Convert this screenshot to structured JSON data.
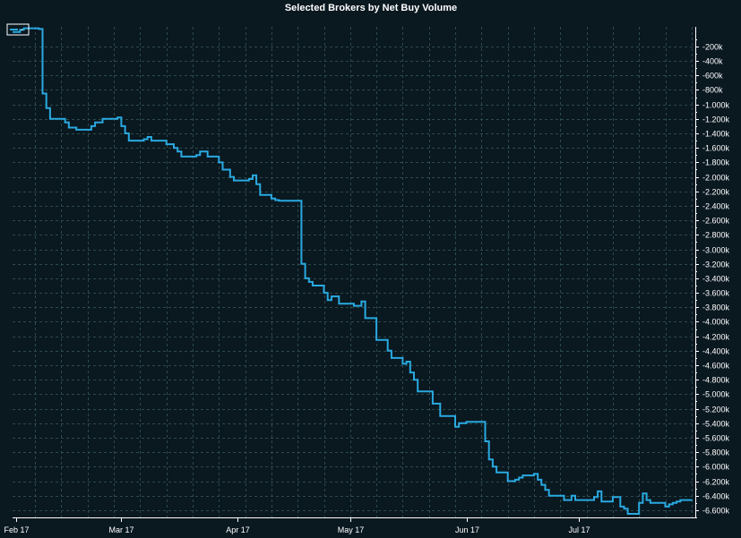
{
  "chart_data": {
    "type": "line",
    "step": true,
    "title": "Selected Brokers by Net Buy Volume",
    "xlabel": "",
    "ylabel": "",
    "x_ticks": [
      {
        "date": "2017-02-01",
        "label": "Feb 17"
      },
      {
        "date": "2017-03-01",
        "label": "Mar 17"
      },
      {
        "date": "2017-04-01",
        "label": "Apr 17"
      },
      {
        "date": "2017-05-01",
        "label": "May 17"
      },
      {
        "date": "2017-06-01",
        "label": "Jun 17"
      },
      {
        "date": "2017-07-01",
        "label": "Jul 17"
      }
    ],
    "xlim": [
      "2017-01-31",
      "2017-08-01"
    ],
    "y_ticks": [
      {
        "value": -200,
        "label": "-200k"
      },
      {
        "value": -400,
        "label": "-400k"
      },
      {
        "value": -600,
        "label": "-600k"
      },
      {
        "value": -800,
        "label": "-800k"
      },
      {
        "value": -1000,
        "label": "-1.000k"
      },
      {
        "value": -1200,
        "label": "-1.200k"
      },
      {
        "value": -1400,
        "label": "-1.400k"
      },
      {
        "value": -1600,
        "label": "-1.600k"
      },
      {
        "value": -1800,
        "label": "-1.800k"
      },
      {
        "value": -2000,
        "label": "-2.000k"
      },
      {
        "value": -2200,
        "label": "-2.200k"
      },
      {
        "value": -2400,
        "label": "-2.400k"
      },
      {
        "value": -2600,
        "label": "-2.600k"
      },
      {
        "value": -2800,
        "label": "-2.800k"
      },
      {
        "value": -3000,
        "label": "-3.000k"
      },
      {
        "value": -3200,
        "label": "-3.200k"
      },
      {
        "value": -3400,
        "label": "-3.400k"
      },
      {
        "value": -3600,
        "label": "-3.600k"
      },
      {
        "value": -3800,
        "label": "-3.800k"
      },
      {
        "value": -4000,
        "label": "-4.000k"
      },
      {
        "value": -4200,
        "label": "-4.200k"
      },
      {
        "value": -4400,
        "label": "-4.400k"
      },
      {
        "value": -4600,
        "label": "-4.600k"
      },
      {
        "value": -4800,
        "label": "-4.800k"
      },
      {
        "value": -5000,
        "label": "-5.000k"
      },
      {
        "value": -5200,
        "label": "-5.200k"
      },
      {
        "value": -5400,
        "label": "-5.400k"
      },
      {
        "value": -5600,
        "label": "-5.600k"
      },
      {
        "value": -5800,
        "label": "-5.800k"
      },
      {
        "value": -6000,
        "label": "-6.000k"
      },
      {
        "value": -6200,
        "label": "-6.200k"
      },
      {
        "value": -6400,
        "label": "-6.400k"
      },
      {
        "value": -6600,
        "label": "-6.600k"
      }
    ],
    "ylim": [
      -6700,
      70
    ],
    "grid": true,
    "legend": {
      "position": "top-left",
      "entries": [
        {
          "label": "-",
          "color": "#29a9e0"
        }
      ]
    },
    "series": [
      {
        "color": "#29a9e0",
        "points": [
          [
            "2017-01-31",
            0
          ],
          [
            "2017-02-02",
            30
          ],
          [
            "2017-02-03",
            50
          ],
          [
            "2017-02-07",
            40
          ],
          [
            "2017-02-08",
            -850
          ],
          [
            "2017-02-09",
            -1050
          ],
          [
            "2017-02-10",
            -1200
          ],
          [
            "2017-02-14",
            -1250
          ],
          [
            "2017-02-15",
            -1320
          ],
          [
            "2017-02-17",
            -1350
          ],
          [
            "2017-02-21",
            -1300
          ],
          [
            "2017-02-22",
            -1250
          ],
          [
            "2017-02-24",
            -1200
          ],
          [
            "2017-02-28",
            -1180
          ],
          [
            "2017-03-01",
            -1300
          ],
          [
            "2017-03-02",
            -1400
          ],
          [
            "2017-03-03",
            -1500
          ],
          [
            "2017-03-07",
            -1480
          ],
          [
            "2017-03-08",
            -1450
          ],
          [
            "2017-03-09",
            -1500
          ],
          [
            "2017-03-13",
            -1550
          ],
          [
            "2017-03-15",
            -1600
          ],
          [
            "2017-03-16",
            -1650
          ],
          [
            "2017-03-17",
            -1720
          ],
          [
            "2017-03-21",
            -1700
          ],
          [
            "2017-03-22",
            -1650
          ],
          [
            "2017-03-24",
            -1720
          ],
          [
            "2017-03-27",
            -1800
          ],
          [
            "2017-03-28",
            -1900
          ],
          [
            "2017-03-30",
            -2000
          ],
          [
            "2017-03-31",
            -2050
          ],
          [
            "2017-04-04",
            -2030
          ],
          [
            "2017-04-05",
            -1980
          ],
          [
            "2017-04-06",
            -2100
          ],
          [
            "2017-04-07",
            -2250
          ],
          [
            "2017-04-10",
            -2300
          ],
          [
            "2017-04-11",
            -2320
          ],
          [
            "2017-04-12",
            -2330
          ],
          [
            "2017-04-18",
            -3200
          ],
          [
            "2017-04-19",
            -3400
          ],
          [
            "2017-04-20",
            -3450
          ],
          [
            "2017-04-21",
            -3500
          ],
          [
            "2017-04-24",
            -3600
          ],
          [
            "2017-04-25",
            -3700
          ],
          [
            "2017-04-26",
            -3650
          ],
          [
            "2017-04-28",
            -3750
          ],
          [
            "2017-05-02",
            -3780
          ],
          [
            "2017-05-04",
            -3720
          ],
          [
            "2017-05-05",
            -3950
          ],
          [
            "2017-05-08",
            -4250
          ],
          [
            "2017-05-11",
            -4400
          ],
          [
            "2017-05-12",
            -4500
          ],
          [
            "2017-05-15",
            -4580
          ],
          [
            "2017-05-16",
            -4550
          ],
          [
            "2017-05-17",
            -4700
          ],
          [
            "2017-05-18",
            -4800
          ],
          [
            "2017-05-19",
            -4960
          ],
          [
            "2017-05-23",
            -5130
          ],
          [
            "2017-05-25",
            -5300
          ],
          [
            "2017-05-29",
            -5450
          ],
          [
            "2017-05-30",
            -5400
          ],
          [
            "2017-06-01",
            -5380
          ],
          [
            "2017-06-02",
            -5380
          ],
          [
            "2017-06-06",
            -5650
          ],
          [
            "2017-06-07",
            -5900
          ],
          [
            "2017-06-08",
            -6000
          ],
          [
            "2017-06-09",
            -6080
          ],
          [
            "2017-06-12",
            -6200
          ],
          [
            "2017-06-14",
            -6180
          ],
          [
            "2017-06-15",
            -6150
          ],
          [
            "2017-06-16",
            -6120
          ],
          [
            "2017-06-19",
            -6100
          ],
          [
            "2017-06-20",
            -6180
          ],
          [
            "2017-06-21",
            -6250
          ],
          [
            "2017-06-22",
            -6320
          ],
          [
            "2017-06-23",
            -6400
          ],
          [
            "2017-06-27",
            -6460
          ],
          [
            "2017-06-29",
            -6400
          ],
          [
            "2017-06-30",
            -6460
          ],
          [
            "2017-07-05",
            -6420
          ],
          [
            "2017-07-06",
            -6340
          ],
          [
            "2017-07-07",
            -6480
          ],
          [
            "2017-07-10",
            -6420
          ],
          [
            "2017-07-12",
            -6550
          ],
          [
            "2017-07-13",
            -6580
          ],
          [
            "2017-07-14",
            -6650
          ],
          [
            "2017-07-17",
            -6500
          ],
          [
            "2017-07-18",
            -6370
          ],
          [
            "2017-07-19",
            -6460
          ],
          [
            "2017-07-20",
            -6500
          ],
          [
            "2017-07-24",
            -6550
          ],
          [
            "2017-07-25",
            -6520
          ],
          [
            "2017-07-26",
            -6500
          ],
          [
            "2017-07-27",
            -6480
          ],
          [
            "2017-07-28",
            -6460
          ],
          [
            "2017-07-31",
            -6450
          ]
        ]
      }
    ]
  }
}
